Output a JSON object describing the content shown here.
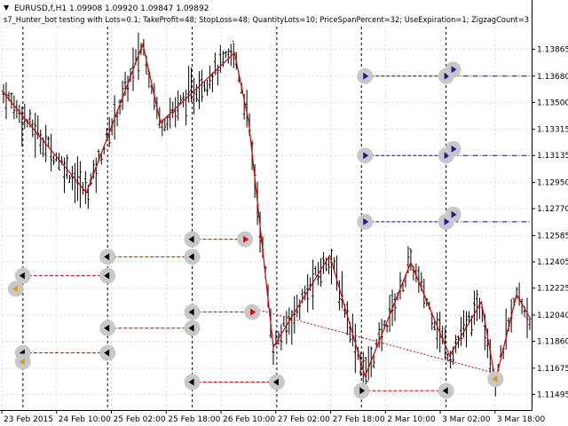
{
  "chart_window": {
    "symbol_line": "EURUSD,f,H1  1.09908 1.09920 1.09847 1.09892",
    "expert_line": "s7_Hunter_bot testing with Lots=0.1; TakeProfit=48; StopLoss=48; QuantityLots=10; PriceSpanPercent=32; UseExpiration=1; ZigzagCount=3",
    "collapse_glyph": "▼"
  },
  "colors": {
    "background": "#ffffff",
    "bar": "#000000",
    "zigzag": "#d40000",
    "order_line": "#d40000",
    "pending_line": "#0000c0",
    "marker": "#c8c8c8",
    "period_separator": "#000000"
  },
  "chart_data": {
    "type": "ohlc",
    "ylim": [
      1.114,
      1.1402
    ],
    "y_ticks": [
      "1.13865",
      "1.13680",
      "1.13500",
      "1.13315",
      "1.13135",
      "1.12950",
      "1.12770",
      "1.12585",
      "1.12405",
      "1.12225",
      "1.12040",
      "1.11860",
      "1.11675",
      "1.11495"
    ],
    "x_ticks": [
      "23 Feb 2015",
      "24 Feb 10:00",
      "25 Feb 02:00",
      "25 Feb 18:00",
      "26 Feb 10:00",
      "27 Feb 02:00",
      "27 Feb 18:00",
      "2 Mar 10:00",
      "3 Mar 02:00",
      "3 Mar 18:00"
    ],
    "x_range": [
      0,
      150
    ],
    "zigzag_points": [
      [
        0,
        1.1358
      ],
      [
        24,
        1.1288
      ],
      [
        40,
        1.139
      ],
      [
        45,
        1.1336
      ],
      [
        66,
        1.1384
      ],
      [
        70,
        1.1337
      ],
      [
        77,
        1.1182
      ],
      [
        93,
        1.1245
      ],
      [
        103,
        1.1162
      ],
      [
        116,
        1.124
      ],
      [
        127,
        1.1176
      ],
      [
        136,
        1.1213
      ],
      [
        140,
        1.1159
      ],
      [
        146,
        1.1218
      ],
      [
        150,
        1.1201
      ]
    ],
    "dotted_trend": [
      [
        72,
        1.1208
      ],
      [
        140,
        1.1164
      ]
    ],
    "period_separators": [
      6,
      30,
      54,
      78,
      102,
      126
    ],
    "pending_levels": [
      {
        "y": 1.1368,
        "x_from": 103,
        "x_to": 126,
        "style": "dash"
      },
      {
        "y": 1.1368,
        "x_from": 128,
        "x_to": 150,
        "style": "dashdot"
      },
      {
        "y": 1.13135,
        "x_from": 103,
        "x_to": 126,
        "style": "dash"
      },
      {
        "y": 1.13135,
        "x_from": 128,
        "x_to": 150,
        "style": "dashdot"
      },
      {
        "y": 1.1268,
        "x_from": 103,
        "x_to": 126,
        "style": "dash"
      },
      {
        "y": 1.1268,
        "x_from": 128,
        "x_to": 150,
        "style": "dashdot"
      }
    ],
    "order_segments": [
      {
        "y": 1.1231,
        "x_from": 6,
        "x_to": 30
      },
      {
        "y": 1.1178,
        "x_from": 6,
        "x_to": 30
      },
      {
        "y": 1.1244,
        "x_from": 30,
        "x_to": 54
      },
      {
        "y": 1.1195,
        "x_from": 30,
        "x_to": 54
      },
      {
        "y": 1.1256,
        "x_from": 54,
        "x_to": 69
      },
      {
        "y": 1.1206,
        "x_from": 54,
        "x_to": 71
      },
      {
        "y": 1.1158,
        "x_from": 54,
        "x_to": 78
      },
      {
        "y": 1.1152,
        "x_from": 102,
        "x_to": 126
      }
    ],
    "markers": [
      {
        "x": 6,
        "y": 1.1231,
        "arrow": "left",
        "color": "#000"
      },
      {
        "x": 30,
        "y": 1.1244,
        "arrow": "left",
        "color": "#000"
      },
      {
        "x": 54,
        "y": 1.1244,
        "arrow": "left",
        "color": "#000"
      },
      {
        "x": 30,
        "y": 1.1231,
        "arrow": "left",
        "color": "#000"
      },
      {
        "x": 6,
        "y": 1.1178,
        "arrow": "left",
        "color": "#000"
      },
      {
        "x": 6,
        "y": 1.1172,
        "arrow": "left",
        "color": "#e0a000"
      },
      {
        "x": 4,
        "y": 1.1222,
        "arrow": "left",
        "color": "#e0a000"
      },
      {
        "x": 30,
        "y": 1.1195,
        "arrow": "left",
        "color": "#000"
      },
      {
        "x": 54,
        "y": 1.1195,
        "arrow": "left",
        "color": "#000"
      },
      {
        "x": 30,
        "y": 1.1178,
        "arrow": "left",
        "color": "#000"
      },
      {
        "x": 54,
        "y": 1.1256,
        "arrow": "left",
        "color": "#000"
      },
      {
        "x": 69,
        "y": 1.1256,
        "arrow": "right",
        "color": "#d00"
      },
      {
        "x": 54,
        "y": 1.1206,
        "arrow": "left",
        "color": "#000"
      },
      {
        "x": 71,
        "y": 1.1206,
        "arrow": "right",
        "color": "#d00"
      },
      {
        "x": 54,
        "y": 1.1158,
        "arrow": "left",
        "color": "#000"
      },
      {
        "x": 78,
        "y": 1.1158,
        "arrow": "left",
        "color": "#000"
      },
      {
        "x": 103,
        "y": 1.1368,
        "arrow": "right",
        "color": "#1a1aa0"
      },
      {
        "x": 126,
        "y": 1.1368,
        "arrow": "right",
        "color": "#1a1aa0"
      },
      {
        "x": 128,
        "y": 1.13725,
        "arrow": "right",
        "color": "#1a1aa0"
      },
      {
        "x": 103,
        "y": 1.13135,
        "arrow": "right",
        "color": "#1a1aa0"
      },
      {
        "x": 126,
        "y": 1.13135,
        "arrow": "right",
        "color": "#1a1aa0"
      },
      {
        "x": 128,
        "y": 1.1318,
        "arrow": "right",
        "color": "#1a1aa0"
      },
      {
        "x": 103,
        "y": 1.1268,
        "arrow": "right",
        "color": "#1a1aa0"
      },
      {
        "x": 126,
        "y": 1.1268,
        "arrow": "right",
        "color": "#1a1aa0"
      },
      {
        "x": 128,
        "y": 1.1273,
        "arrow": "right",
        "color": "#1a1aa0"
      },
      {
        "x": 102,
        "y": 1.1152,
        "arrow": "right",
        "color": "#000"
      },
      {
        "x": 126,
        "y": 1.1152,
        "arrow": "left",
        "color": "#000"
      },
      {
        "x": 140,
        "y": 1.116,
        "arrow": "left",
        "color": "#e0a000"
      }
    ]
  }
}
